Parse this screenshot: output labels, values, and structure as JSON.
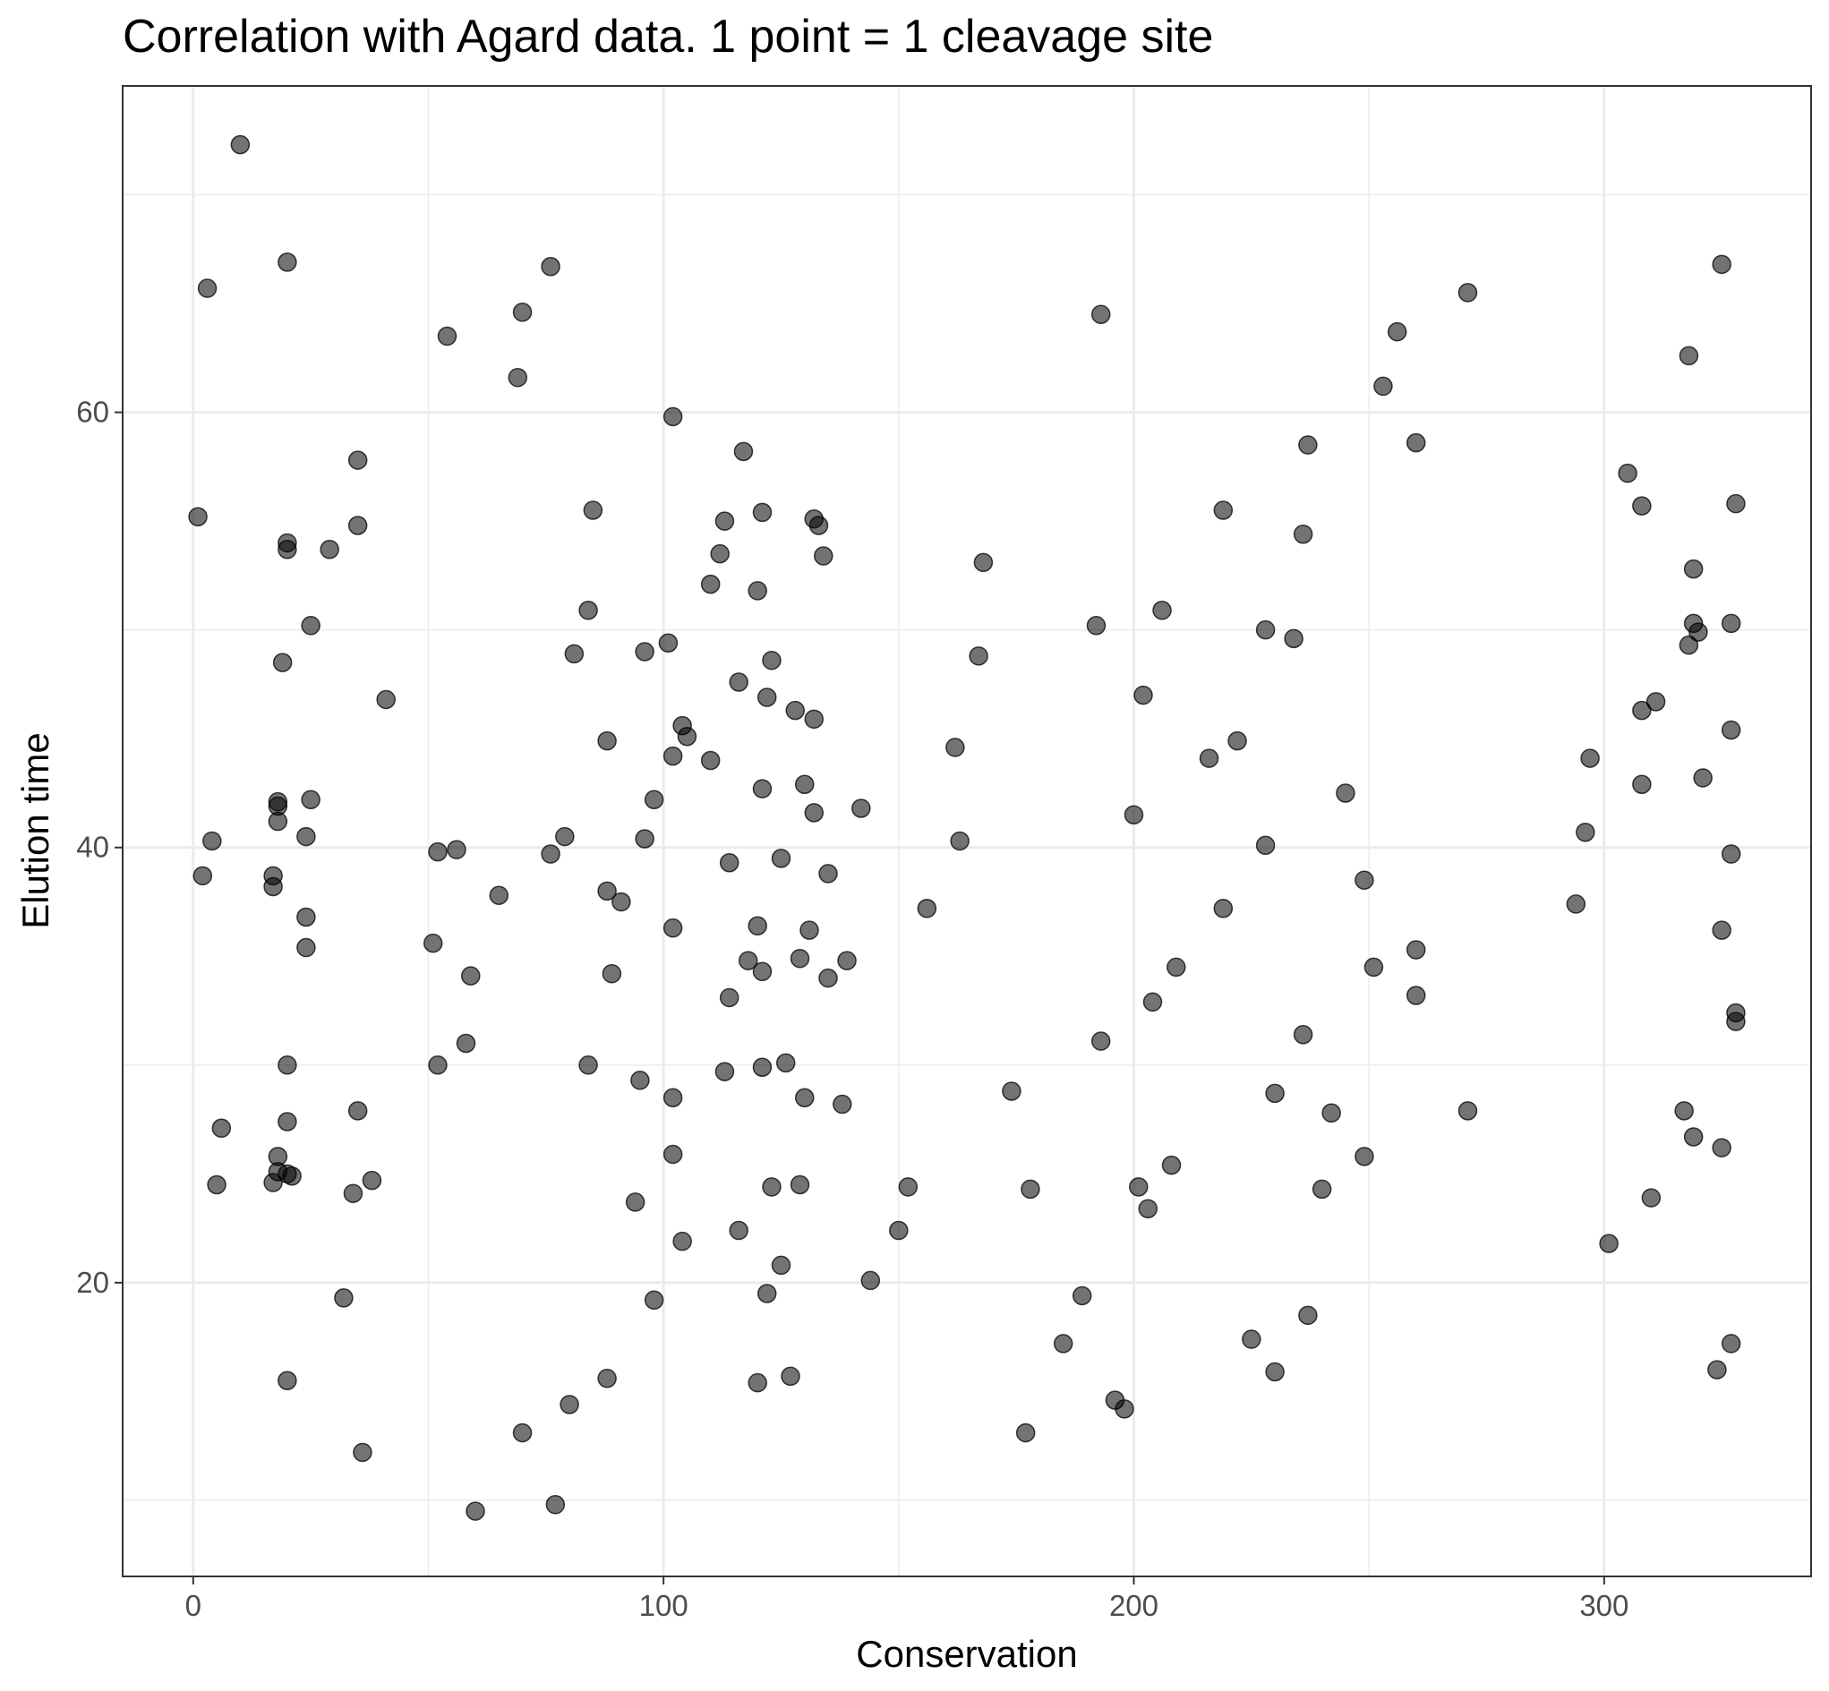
{
  "chart_data": {
    "type": "scatter",
    "title": "Correlation with Agard data. 1 point = 1 cleavage site",
    "xlabel": "Conservation",
    "ylabel": "Elution time",
    "xlim": [
      -15,
      344
    ],
    "ylim": [
      6.5,
      75
    ],
    "x_ticks": [
      0,
      100,
      200,
      300
    ],
    "y_ticks": [
      20,
      40,
      60
    ],
    "x_tick_labels": [
      "0",
      "100",
      "200",
      "300"
    ],
    "y_tick_labels": [
      "20",
      "40",
      "60"
    ],
    "grid": true,
    "legend": "none",
    "point_color": "#000000",
    "points": [
      [
        10,
        72.3
      ],
      [
        3,
        65.7
      ],
      [
        20,
        66.9
      ],
      [
        1,
        55.2
      ],
      [
        4,
        40.3
      ],
      [
        2,
        38.7
      ],
      [
        6,
        27.1
      ],
      [
        5,
        24.5
      ],
      [
        19,
        48.5
      ],
      [
        20,
        54
      ],
      [
        20,
        53.7
      ],
      [
        18,
        42.1
      ],
      [
        18,
        41.9
      ],
      [
        18,
        41.2
      ],
      [
        17,
        38.7
      ],
      [
        17,
        38.2
      ],
      [
        20,
        30
      ],
      [
        20,
        27.4
      ],
      [
        18,
        25.8
      ],
      [
        18,
        25.1
      ],
      [
        17,
        24.6
      ],
      [
        21,
        24.9
      ],
      [
        20,
        25
      ],
      [
        20,
        15.5
      ],
      [
        24,
        40.5
      ],
      [
        25,
        42.2
      ],
      [
        24,
        36.8
      ],
      [
        24,
        35.4
      ],
      [
        25,
        50.2
      ],
      [
        29,
        53.7
      ],
      [
        35,
        57.8
      ],
      [
        35,
        54.8
      ],
      [
        35,
        27.9
      ],
      [
        34,
        24.1
      ],
      [
        32,
        19.3
      ],
      [
        36,
        12.2
      ],
      [
        38,
        24.7
      ],
      [
        41,
        46.8
      ],
      [
        54,
        63.5
      ],
      [
        70,
        64.6
      ],
      [
        69,
        61.6
      ],
      [
        76,
        66.7
      ],
      [
        52,
        39.8
      ],
      [
        56,
        39.9
      ],
      [
        51,
        35.6
      ],
      [
        52,
        30
      ],
      [
        58,
        31
      ],
      [
        59,
        34.1
      ],
      [
        65,
        37.8
      ],
      [
        60,
        9.5
      ],
      [
        70,
        13.1
      ],
      [
        77,
        9.8
      ],
      [
        80,
        14.4
      ],
      [
        76,
        39.7
      ],
      [
        79,
        40.5
      ],
      [
        81,
        48.9
      ],
      [
        84,
        50.9
      ],
      [
        85,
        55.5
      ],
      [
        88,
        44.9
      ],
      [
        88,
        38
      ],
      [
        89,
        34.2
      ],
      [
        91,
        37.5
      ],
      [
        84,
        30
      ],
      [
        88,
        15.6
      ],
      [
        96,
        49
      ],
      [
        96,
        40.4
      ],
      [
        98,
        42.2
      ],
      [
        95,
        29.3
      ],
      [
        94,
        23.7
      ],
      [
        98,
        19.2
      ],
      [
        101,
        49.4
      ],
      [
        102,
        59.8
      ],
      [
        104,
        45.6
      ],
      [
        105,
        45.1
      ],
      [
        102,
        44.2
      ],
      [
        102,
        36.3
      ],
      [
        102,
        28.5
      ],
      [
        102,
        25.9
      ],
      [
        104,
        21.9
      ],
      [
        110,
        52.1
      ],
      [
        112,
        53.5
      ],
      [
        113,
        55
      ],
      [
        110,
        44
      ],
      [
        114,
        39.3
      ],
      [
        113,
        29.7
      ],
      [
        114,
        33.1
      ],
      [
        117,
        58.2
      ],
      [
        116,
        47.6
      ],
      [
        116,
        22.4
      ],
      [
        118,
        34.8
      ],
      [
        120,
        51.8
      ],
      [
        121,
        55.4
      ],
      [
        122,
        46.9
      ],
      [
        123,
        48.6
      ],
      [
        121,
        42.7
      ],
      [
        120,
        36.4
      ],
      [
        121,
        34.3
      ],
      [
        121,
        29.9
      ],
      [
        123,
        24.4
      ],
      [
        122,
        19.5
      ],
      [
        120,
        15.4
      ],
      [
        128,
        46.3
      ],
      [
        130,
        42.9
      ],
      [
        132,
        45.9
      ],
      [
        132,
        55.1
      ],
      [
        133,
        54.8
      ],
      [
        134,
        53.4
      ],
      [
        132,
        41.6
      ],
      [
        125,
        39.5
      ],
      [
        135,
        38.8
      ],
      [
        131,
        36.2
      ],
      [
        129,
        34.9
      ],
      [
        135,
        34
      ],
      [
        139,
        34.8
      ],
      [
        126,
        30.1
      ],
      [
        130,
        28.5
      ],
      [
        138,
        28.2
      ],
      [
        129,
        24.5
      ],
      [
        125,
        20.8
      ],
      [
        127,
        15.7
      ],
      [
        142,
        41.8
      ],
      [
        144,
        20.1
      ],
      [
        150,
        22.4
      ],
      [
        152,
        24.4
      ],
      [
        156,
        37.2
      ],
      [
        162,
        44.6
      ],
      [
        163,
        40.3
      ],
      [
        167,
        48.8
      ],
      [
        168,
        53.1
      ],
      [
        174,
        28.8
      ],
      [
        178,
        24.3
      ],
      [
        177,
        13.1
      ],
      [
        185,
        17.2
      ],
      [
        189,
        19.4
      ],
      [
        193,
        64.5
      ],
      [
        192,
        50.2
      ],
      [
        193,
        31.1
      ],
      [
        196,
        14.6
      ],
      [
        198,
        14.2
      ],
      [
        200,
        41.5
      ],
      [
        202,
        47
      ],
      [
        201,
        24.4
      ],
      [
        203,
        23.4
      ],
      [
        204,
        32.9
      ],
      [
        206,
        50.9
      ],
      [
        208,
        25.4
      ],
      [
        209,
        34.5
      ],
      [
        216,
        44.1
      ],
      [
        219,
        55.5
      ],
      [
        219,
        37.2
      ],
      [
        222,
        44.9
      ],
      [
        225,
        17.4
      ],
      [
        228,
        50
      ],
      [
        228,
        40.1
      ],
      [
        230,
        28.7
      ],
      [
        230,
        15.9
      ],
      [
        234,
        49.6
      ],
      [
        236,
        54.4
      ],
      [
        237,
        58.5
      ],
      [
        236,
        31.4
      ],
      [
        237,
        18.5
      ],
      [
        240,
        24.3
      ],
      [
        242,
        27.8
      ],
      [
        245,
        42.5
      ],
      [
        249,
        38.5
      ],
      [
        249,
        25.8
      ],
      [
        251,
        34.5
      ],
      [
        253,
        61.2
      ],
      [
        256,
        63.7
      ],
      [
        260,
        58.6
      ],
      [
        260,
        35.3
      ],
      [
        260,
        33.2
      ],
      [
        271,
        65.5
      ],
      [
        271,
        27.9
      ],
      [
        294,
        37.4
      ],
      [
        296,
        40.7
      ],
      [
        297,
        44.1
      ],
      [
        301,
        21.8
      ],
      [
        305,
        57.2
      ],
      [
        308,
        55.7
      ],
      [
        308,
        46.3
      ],
      [
        308,
        42.9
      ],
      [
        310,
        23.9
      ],
      [
        311,
        46.7
      ],
      [
        317,
        27.9
      ],
      [
        318,
        62.6
      ],
      [
        318,
        49.3
      ],
      [
        319,
        52.8
      ],
      [
        319,
        50.3
      ],
      [
        320,
        49.9
      ],
      [
        319,
        26.7
      ],
      [
        321,
        43.2
      ],
      [
        325,
        66.8
      ],
      [
        325,
        36.2
      ],
      [
        325,
        26.2
      ],
      [
        324,
        16
      ],
      [
        327,
        50.3
      ],
      [
        327,
        45.4
      ],
      [
        327,
        39.7
      ],
      [
        327,
        17.2
      ],
      [
        328,
        55.8
      ],
      [
        328,
        32.4
      ],
      [
        328,
        32
      ]
    ]
  }
}
